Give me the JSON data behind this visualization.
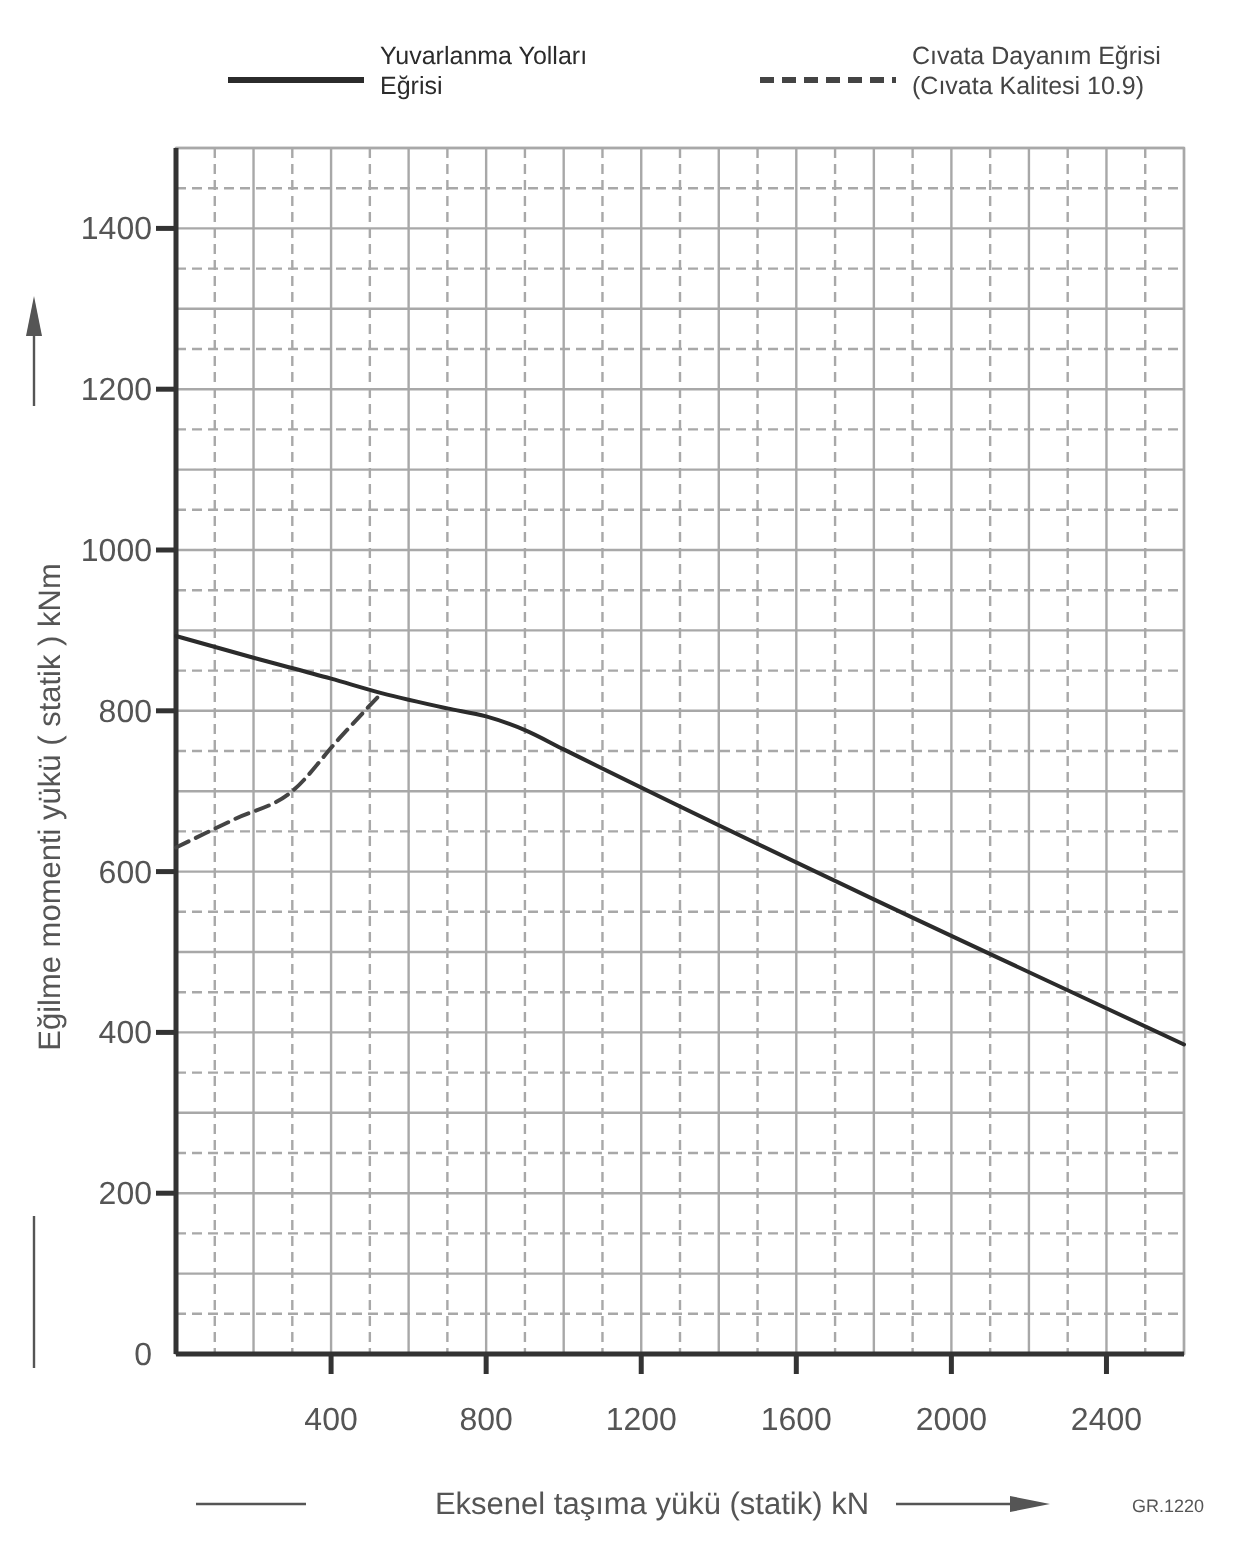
{
  "chart_data": {
    "type": "line",
    "xlabel": "Eksenel taşıma yükü  (statik) kN",
    "ylabel": "Eğilme momenti yükü ( statik )  kNm",
    "annotations": [
      "GR.1220"
    ],
    "xlim": [
      0,
      2600
    ],
    "xticks": [
      400,
      800,
      1200,
      1600,
      2000,
      2400
    ],
    "ylim": [
      0,
      1500
    ],
    "yticks": [
      0,
      200,
      400,
      600,
      800,
      1000,
      1200,
      1400
    ],
    "grid": true,
    "legend": "top",
    "marker": "none",
    "series": [
      {
        "name": "Yuvarlanma Yolları Eğrisi",
        "color": "#2b2b2b",
        "line_style": "solid",
        "x": [
          0,
          200,
          400,
          530,
          700,
          800,
          900,
          1000,
          2600
        ],
        "values": [
          893,
          866,
          840,
          822,
          803,
          793,
          776,
          752,
          385
        ]
      },
      {
        "name": "Cıvata Dayanım Eğrisi (Cıvata Kalitesi 10.9)",
        "color": "#444444",
        "line_style": "dashed",
        "x": [
          0,
          150,
          300,
          420,
          530
        ],
        "values": [
          630,
          665,
          700,
          765,
          822
        ]
      }
    ]
  }
}
